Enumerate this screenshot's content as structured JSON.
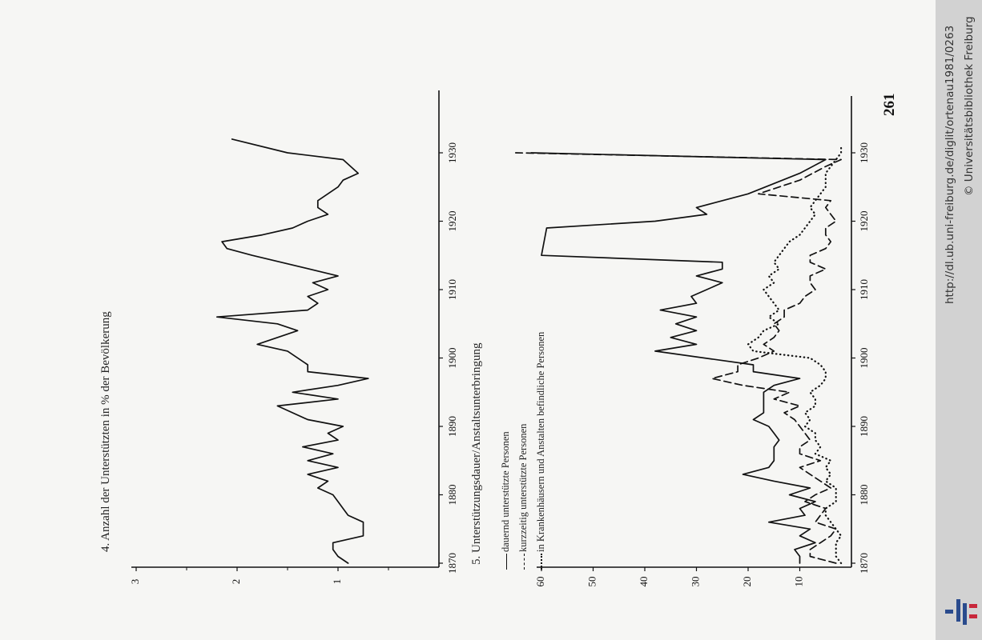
{
  "page": {
    "page_number": "261",
    "sidebar_url": "http://dl.ub.uni-freiburg.de/diglit/ortenau1981/0263",
    "sidebar_copyright": "© Universitätsbibliothek Freiburg",
    "logo": "ub-freiburg-logo",
    "paper_color": "#f6f6f4",
    "ink_color": "#111111"
  },
  "chart_data": [
    {
      "type": "line",
      "title": "4. Anzahl der Unterstützten in % der Bevölkerung",
      "xlabel": "",
      "ylabel": "",
      "xlim": [
        1870,
        1935
      ],
      "ylim": [
        0,
        3
      ],
      "x_ticks": [
        "1870",
        "1880",
        "1890",
        "1900",
        "1910",
        "1920",
        "1930"
      ],
      "y_ticks": [
        "1",
        "2",
        "3"
      ],
      "series": [
        {
          "style": "solid",
          "points": [
            [
              1870,
              0.9
            ],
            [
              1871,
              1.0
            ],
            [
              1872,
              1.05
            ],
            [
              1873,
              1.05
            ],
            [
              1874,
              0.75
            ],
            [
              1876,
              0.75
            ],
            [
              1877,
              0.9
            ],
            [
              1878,
              0.95
            ],
            [
              1879,
              1.0
            ],
            [
              1880,
              1.05
            ],
            [
              1881,
              1.2
            ],
            [
              1882,
              1.1
            ],
            [
              1883,
              1.3
            ],
            [
              1884,
              1.0
            ],
            [
              1885,
              1.3
            ],
            [
              1886,
              1.05
            ],
            [
              1887,
              1.35
            ],
            [
              1888,
              1.0
            ],
            [
              1889,
              1.1
            ],
            [
              1890,
              0.95
            ],
            [
              1891,
              1.3
            ],
            [
              1893,
              1.6
            ],
            [
              1894,
              1.0
            ],
            [
              1895,
              1.45
            ],
            [
              1896,
              1.0
            ],
            [
              1897,
              0.7
            ],
            [
              1898,
              1.3
            ],
            [
              1899,
              1.3
            ],
            [
              1901,
              1.5
            ],
            [
              1902,
              1.8
            ],
            [
              1904,
              1.4
            ],
            [
              1905,
              1.6
            ],
            [
              1906,
              2.2
            ],
            [
              1907,
              1.3
            ],
            [
              1908,
              1.2
            ],
            [
              1909,
              1.3
            ],
            [
              1910,
              1.1
            ],
            [
              1911,
              1.25
            ],
            [
              1912,
              1.0
            ],
            [
              1915,
              1.85
            ],
            [
              1916,
              2.1
            ],
            [
              1917,
              2.15
            ],
            [
              1918,
              1.75
            ],
            [
              1919,
              1.45
            ],
            [
              1920,
              1.3
            ],
            [
              1921,
              1.1
            ],
            [
              1922,
              1.2
            ],
            [
              1923,
              1.2
            ],
            [
              1925,
              1.0
            ],
            [
              1926,
              0.95
            ],
            [
              1927,
              0.8
            ],
            [
              1929,
              0.95
            ],
            [
              1930,
              1.5
            ],
            [
              1932,
              2.05
            ]
          ]
        }
      ]
    },
    {
      "type": "line",
      "title": "5. Unterstützungsdauer/Anstaltsunterbringung",
      "xlabel": "",
      "ylabel": "",
      "xlim": [
        1870,
        1935
      ],
      "ylim": [
        0,
        60
      ],
      "x_ticks": [
        "1870",
        "1880",
        "1890",
        "1900",
        "1910",
        "1920",
        "1930"
      ],
      "y_ticks": [
        "10",
        "20",
        "30",
        "40",
        "50",
        "60"
      ],
      "legend": [
        "dauernd unterstützte Personen",
        "kurzzeitig unterstützte Personen",
        "in Krankenhäusern und Anstalten befindliche Personen"
      ],
      "legend_position": "bottom-left",
      "series": [
        {
          "name": "dauernd unterstützte Personen",
          "style": "solid",
          "points": [
            [
              1870,
              10
            ],
            [
              1871,
              10
            ],
            [
              1872,
              11
            ],
            [
              1873,
              7
            ],
            [
              1874,
              10
            ],
            [
              1875,
              8
            ],
            [
              1876,
              16
            ],
            [
              1877,
              9
            ],
            [
              1878,
              10
            ],
            [
              1879,
              7
            ],
            [
              1880,
              12
            ],
            [
              1881,
              8
            ],
            [
              1882,
              15
            ],
            [
              1883,
              21
            ],
            [
              1884,
              16
            ],
            [
              1885,
              15
            ],
            [
              1886,
              15
            ],
            [
              1887,
              15
            ],
            [
              1888,
              14
            ],
            [
              1889,
              15
            ],
            [
              1890,
              16
            ],
            [
              1891,
              19
            ],
            [
              1892,
              17
            ],
            [
              1893,
              17
            ],
            [
              1894,
              17
            ],
            [
              1895,
              17
            ],
            [
              1896,
              15
            ],
            [
              1897,
              10
            ],
            [
              1898,
              19
            ],
            [
              1899,
              19
            ],
            [
              1901,
              38
            ],
            [
              1902,
              30
            ],
            [
              1903,
              35
            ],
            [
              1904,
              30
            ],
            [
              1905,
              34
            ],
            [
              1906,
              30
            ],
            [
              1907,
              37
            ],
            [
              1908,
              30
            ],
            [
              1909,
              31
            ],
            [
              1910,
              28
            ],
            [
              1911,
              25
            ],
            [
              1912,
              30
            ],
            [
              1913,
              25
            ],
            [
              1914,
              25
            ],
            [
              1915,
              60
            ],
            [
              1919,
              59
            ],
            [
              1920,
              38
            ],
            [
              1921,
              28
            ],
            [
              1922,
              30
            ],
            [
              1924,
              20
            ],
            [
              1927,
              10
            ],
            [
              1929,
              5
            ],
            [
              1930,
              62
            ]
          ]
        },
        {
          "name": "kurzzeitig unterstützte Personen",
          "style": "dashed",
          "points": [
            [
              1870,
              3
            ],
            [
              1871,
              8
            ],
            [
              1872,
              8
            ],
            [
              1873,
              6
            ],
            [
              1874,
              4
            ],
            [
              1875,
              3
            ],
            [
              1876,
              7
            ],
            [
              1877,
              6
            ],
            [
              1878,
              5
            ],
            [
              1879,
              9
            ],
            [
              1880,
              7
            ],
            [
              1881,
              4
            ],
            [
              1882,
              6
            ],
            [
              1883,
              8
            ],
            [
              1884,
              10
            ],
            [
              1885,
              6
            ],
            [
              1886,
              10
            ],
            [
              1887,
              10
            ],
            [
              1888,
              8
            ],
            [
              1889,
              9
            ],
            [
              1890,
              10
            ],
            [
              1891,
              11
            ],
            [
              1892,
              13
            ],
            [
              1893,
              10
            ],
            [
              1894,
              15
            ],
            [
              1895,
              12
            ],
            [
              1896,
              21
            ],
            [
              1897,
              27
            ],
            [
              1898,
              22
            ],
            [
              1899,
              22
            ],
            [
              1900,
              18
            ],
            [
              1901,
              15
            ],
            [
              1902,
              17
            ],
            [
              1903,
              15
            ],
            [
              1904,
              14
            ],
            [
              1905,
              15
            ],
            [
              1906,
              13
            ],
            [
              1907,
              13
            ],
            [
              1908,
              10
            ],
            [
              1909,
              9
            ],
            [
              1910,
              7
            ],
            [
              1911,
              8
            ],
            [
              1912,
              8
            ],
            [
              1913,
              5
            ],
            [
              1914,
              8
            ],
            [
              1915,
              8
            ],
            [
              1916,
              5
            ],
            [
              1917,
              4
            ],
            [
              1918,
              5
            ],
            [
              1919,
              5
            ],
            [
              1920,
              3
            ],
            [
              1921,
              4
            ],
            [
              1922,
              5
            ],
            [
              1923,
              4
            ],
            [
              1924,
              18
            ],
            [
              1926,
              10
            ],
            [
              1928,
              5
            ],
            [
              1929,
              2
            ],
            [
              1930,
              65
            ]
          ]
        },
        {
          "name": "in Krankenhäusern und Anstalten befindliche Personen",
          "style": "dotted",
          "points": [
            [
              1870,
              2
            ],
            [
              1871,
              3
            ],
            [
              1872,
              3
            ],
            [
              1873,
              3
            ],
            [
              1874,
              2
            ],
            [
              1875,
              3
            ],
            [
              1876,
              4
            ],
            [
              1877,
              5
            ],
            [
              1878,
              5
            ],
            [
              1879,
              3
            ],
            [
              1880,
              3
            ],
            [
              1881,
              3
            ],
            [
              1882,
              5
            ],
            [
              1883,
              4
            ],
            [
              1884,
              5
            ],
            [
              1885,
              4
            ],
            [
              1886,
              7
            ],
            [
              1887,
              6
            ],
            [
              1888,
              7
            ],
            [
              1889,
              7
            ],
            [
              1890,
              9
            ],
            [
              1891,
              8
            ],
            [
              1892,
              9
            ],
            [
              1893,
              7
            ],
            [
              1894,
              7
            ],
            [
              1895,
              8
            ],
            [
              1896,
              6
            ],
            [
              1897,
              5
            ],
            [
              1898,
              5
            ],
            [
              1899,
              6
            ],
            [
              1900,
              8
            ],
            [
              1901,
              19
            ],
            [
              1902,
              20
            ],
            [
              1903,
              18
            ],
            [
              1904,
              17
            ],
            [
              1905,
              14
            ],
            [
              1906,
              16
            ],
            [
              1907,
              14
            ],
            [
              1908,
              15
            ],
            [
              1909,
              16
            ],
            [
              1910,
              17
            ],
            [
              1911,
              15
            ],
            [
              1912,
              16
            ],
            [
              1913,
              14
            ],
            [
              1914,
              15
            ],
            [
              1915,
              14
            ],
            [
              1916,
              13
            ],
            [
              1917,
              12
            ],
            [
              1918,
              10
            ],
            [
              1919,
              9
            ],
            [
              1920,
              8
            ],
            [
              1921,
              7
            ],
            [
              1922,
              8
            ],
            [
              1923,
              7
            ],
            [
              1924,
              6
            ],
            [
              1925,
              5
            ],
            [
              1926,
              5
            ],
            [
              1927,
              5
            ],
            [
              1928,
              4
            ],
            [
              1929,
              3
            ],
            [
              1930,
              2
            ],
            [
              1931,
              2
            ]
          ]
        }
      ]
    }
  ]
}
